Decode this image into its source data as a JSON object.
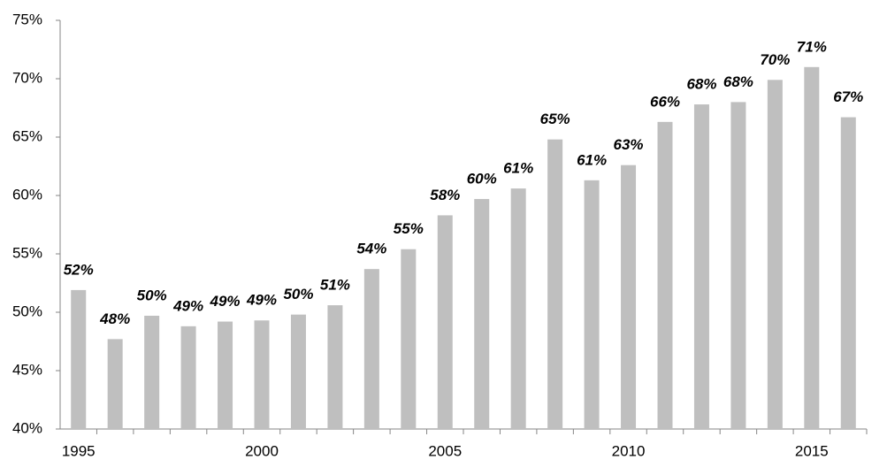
{
  "chart_data": {
    "type": "bar",
    "categories": [
      "1995",
      null,
      null,
      null,
      null,
      "2000",
      null,
      null,
      null,
      null,
      "2005",
      null,
      null,
      null,
      null,
      "2010",
      null,
      null,
      null,
      null,
      "2015",
      null
    ],
    "values": [
      51.9,
      47.7,
      49.7,
      48.8,
      49.2,
      49.3,
      49.8,
      50.6,
      53.7,
      55.4,
      58.3,
      59.7,
      60.6,
      64.8,
      61.3,
      62.6,
      66.3,
      67.8,
      68.0,
      69.9,
      71.0,
      66.7
    ],
    "value_labels": [
      "52%",
      "48%",
      "50%",
      "49%",
      "49%",
      "49%",
      "50%",
      "51%",
      "54%",
      "55%",
      "58%",
      "60%",
      "61%",
      "65%",
      "61%",
      "63%",
      "66%",
      "68%",
      "68%",
      "70%",
      "71%",
      "67%"
    ],
    "color": "#bfbfbf",
    "ylim": [
      40,
      75
    ],
    "yticks": [
      {
        "value": 40,
        "label": "40%"
      },
      {
        "value": 45,
        "label": "45%"
      },
      {
        "value": 50,
        "label": "50%"
      },
      {
        "value": 55,
        "label": "55%"
      },
      {
        "value": 60,
        "label": "60%"
      },
      {
        "value": 65,
        "label": "65%"
      },
      {
        "value": 70,
        "label": "70%"
      },
      {
        "value": 75,
        "label": "75%"
      }
    ],
    "grid": false
  }
}
